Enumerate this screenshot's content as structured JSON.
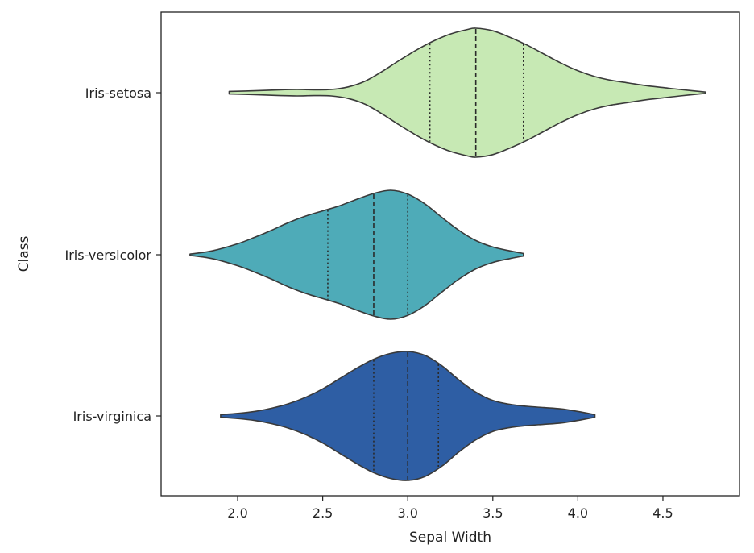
{
  "chart_data": {
    "type": "violin",
    "orientation": "horizontal",
    "title": "",
    "xlabel": "Sepal Width",
    "ylabel": "Class",
    "xlim": [
      1.55,
      4.95
    ],
    "xticks": [
      2.0,
      2.5,
      3.0,
      3.5,
      4.0,
      4.5
    ],
    "xtick_labels": [
      "2.0",
      "2.5",
      "3.0",
      "3.5",
      "4.0",
      "4.5"
    ],
    "grid": false,
    "inner": "quartile",
    "categories": [
      "Iris-setosa",
      "Iris-versicolor",
      "Iris-virginica"
    ],
    "series": [
      {
        "name": "Iris-setosa",
        "color": "#c7e9b4",
        "min": 1.95,
        "max": 4.75,
        "q1": 3.13,
        "median": 3.4,
        "q3": 3.68,
        "density": [
          [
            1.95,
            0.02
          ],
          [
            2.1,
            0.03
          ],
          [
            2.25,
            0.045
          ],
          [
            2.35,
            0.05
          ],
          [
            2.45,
            0.045
          ],
          [
            2.55,
            0.05
          ],
          [
            2.65,
            0.09
          ],
          [
            2.75,
            0.18
          ],
          [
            2.85,
            0.33
          ],
          [
            2.95,
            0.5
          ],
          [
            3.05,
            0.66
          ],
          [
            3.15,
            0.8
          ],
          [
            3.25,
            0.91
          ],
          [
            3.35,
            0.98
          ],
          [
            3.4,
            1.0
          ],
          [
            3.5,
            0.96
          ],
          [
            3.6,
            0.86
          ],
          [
            3.7,
            0.74
          ],
          [
            3.8,
            0.6
          ],
          [
            3.9,
            0.46
          ],
          [
            4.0,
            0.34
          ],
          [
            4.1,
            0.25
          ],
          [
            4.2,
            0.19
          ],
          [
            4.3,
            0.15
          ],
          [
            4.4,
            0.11
          ],
          [
            4.5,
            0.08
          ],
          [
            4.6,
            0.05
          ],
          [
            4.75,
            0.01
          ]
        ]
      },
      {
        "name": "Iris-versicolor",
        "color": "#4eabb8",
        "min": 1.72,
        "max": 3.68,
        "q1": 2.53,
        "median": 2.8,
        "q3": 3.0,
        "density": [
          [
            1.72,
            0.01
          ],
          [
            1.85,
            0.06
          ],
          [
            2.0,
            0.17
          ],
          [
            2.1,
            0.27
          ],
          [
            2.2,
            0.38
          ],
          [
            2.3,
            0.5
          ],
          [
            2.4,
            0.6
          ],
          [
            2.5,
            0.68
          ],
          [
            2.6,
            0.76
          ],
          [
            2.7,
            0.86
          ],
          [
            2.8,
            0.95
          ],
          [
            2.9,
            1.0
          ],
          [
            3.0,
            0.94
          ],
          [
            3.1,
            0.79
          ],
          [
            3.2,
            0.58
          ],
          [
            3.3,
            0.38
          ],
          [
            3.4,
            0.22
          ],
          [
            3.5,
            0.12
          ],
          [
            3.6,
            0.06
          ],
          [
            3.68,
            0.02
          ]
        ]
      },
      {
        "name": "Iris-virginica",
        "color": "#2e5ea4",
        "min": 1.9,
        "max": 4.1,
        "q1": 2.8,
        "median": 3.0,
        "q3": 3.18,
        "density": [
          [
            1.9,
            0.02
          ],
          [
            2.0,
            0.04
          ],
          [
            2.1,
            0.07
          ],
          [
            2.2,
            0.12
          ],
          [
            2.3,
            0.19
          ],
          [
            2.4,
            0.29
          ],
          [
            2.5,
            0.42
          ],
          [
            2.6,
            0.58
          ],
          [
            2.7,
            0.74
          ],
          [
            2.8,
            0.88
          ],
          [
            2.9,
            0.97
          ],
          [
            3.0,
            1.0
          ],
          [
            3.1,
            0.94
          ],
          [
            3.2,
            0.78
          ],
          [
            3.3,
            0.56
          ],
          [
            3.4,
            0.37
          ],
          [
            3.5,
            0.24
          ],
          [
            3.6,
            0.18
          ],
          [
            3.7,
            0.15
          ],
          [
            3.8,
            0.13
          ],
          [
            3.9,
            0.11
          ],
          [
            4.0,
            0.07
          ],
          [
            4.1,
            0.02
          ]
        ]
      }
    ]
  }
}
